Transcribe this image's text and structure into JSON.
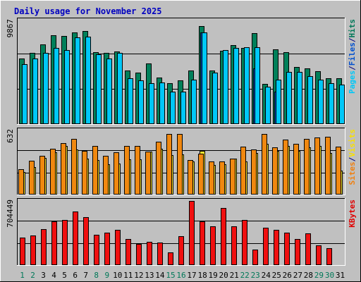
{
  "chart_data": {
    "title": "Daily usage for November 2025",
    "days": [
      "1",
      "2",
      "3",
      "4",
      "5",
      "6",
      "7",
      "8",
      "9",
      "10",
      "11",
      "12",
      "13",
      "14",
      "15",
      "16",
      "17",
      "18",
      "19",
      "20",
      "21",
      "22",
      "23",
      "24",
      "25",
      "26",
      "27",
      "28",
      "29",
      "30",
      "31"
    ],
    "weekend_days": [
      "1",
      "2",
      "8",
      "9",
      "15",
      "16",
      "22",
      "23",
      "29",
      "30"
    ],
    "panels": [
      {
        "type": "bar",
        "name": "hits-files-pages",
        "max_label": "9867",
        "ymax": 9867,
        "legend": [
          {
            "label": "Pages",
            "color": "#00c8f8"
          },
          {
            "label": "/",
            "color": "#000080"
          },
          {
            "label": "Files",
            "color": "#0050d0"
          },
          {
            "label": "/",
            "color": "#000080"
          },
          {
            "label": "Hits",
            "color": "#007858"
          }
        ],
        "series": [
          {
            "name": "Hits",
            "color": "#00805a",
            "values": [
              6200,
              6750,
              7600,
              8450,
              8400,
              8700,
              8850,
              6850,
              6750,
              6900,
              5100,
              4850,
              5750,
              4400,
              3830,
              4100,
              5050,
              9300,
              5100,
              6960,
              7500,
              7200,
              8650,
              3780,
              7100,
              6800,
              5400,
              5300,
              5030,
              4350,
              4350
            ]
          },
          {
            "name": "Files",
            "color": "#0050d0",
            "values": [
              0,
              0,
              0,
              0,
              0,
              0,
              0,
              0,
              0,
              0,
              0,
              0,
              0,
              0,
              0,
              0,
              0,
              8700,
              0,
              0,
              0,
              0,
              5300,
              0,
              3050,
              0,
              0,
              0,
              0,
              0,
              0
            ]
          },
          {
            "name": "Pages",
            "color": "#00c8f8",
            "values": [
              5690,
              6200,
              6790,
              7200,
              7000,
              8220,
              8300,
              6590,
              6250,
              6730,
              4350,
              4100,
              3850,
              3950,
              3050,
              3050,
              4200,
              8700,
              4850,
              7000,
              7260,
              7300,
              7270,
              3520,
              4200,
              4900,
              4950,
              4500,
              4200,
              3850,
              3750
            ]
          }
        ]
      },
      {
        "type": "bar",
        "name": "visits-sites",
        "max_label": "632",
        "ymax": 632,
        "legend": [
          {
            "label": "Sites",
            "color": "#f08010"
          },
          {
            "label": "/",
            "color": "#000080"
          },
          {
            "label": "Visits",
            "color": "#f8e000"
          }
        ],
        "series": [
          {
            "name": "Visits",
            "color": "#ffe830",
            "values": [
              215,
              270,
              355,
              415,
              475,
              440,
              350,
              335,
              295,
              300,
              345,
              345,
              420,
              450,
              385,
              390,
              320,
              430,
              285,
              295,
              350,
              320,
              405,
              500,
              430,
              480,
              430,
              465,
              475,
              410,
              230
            ]
          },
          {
            "name": "Sites",
            "color": "#f08810",
            "values": [
              245,
              330,
              378,
              452,
              508,
              550,
              430,
              480,
              378,
              415,
              480,
              480,
              420,
              520,
              600,
              600,
              340,
              400,
              320,
              320,
              350,
              470,
              440,
              600,
              460,
              540,
              500,
              545,
              560,
              570,
              470
            ]
          }
        ]
      },
      {
        "type": "bar",
        "name": "kbytes",
        "max_label": "704449",
        "ymax": 704449,
        "legend": [
          {
            "label": "KBytes",
            "color": "#e00000"
          }
        ],
        "series": [
          {
            "name": "KBytes",
            "color": "#f01010",
            "values": [
              300000,
              320000,
              395000,
              480000,
              490000,
              590000,
              525000,
              330000,
              350000,
              380000,
              280000,
              225000,
              250000,
              240000,
              130000,
              310000,
              704449,
              480000,
              420000,
              625000,
              420000,
              490000,
              165000,
              410000,
              380000,
              355000,
              280000,
              345000,
              215000,
              180000,
              0
            ]
          }
        ]
      }
    ]
  }
}
